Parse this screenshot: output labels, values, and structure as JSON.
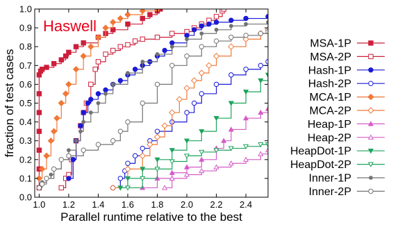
{
  "chart_data": {
    "type": "line",
    "title": "Haswell",
    "xlabel": "Parallel runtime relative to the best",
    "ylabel": "fraction of test cases",
    "xlim": [
      0.97,
      2.55
    ],
    "ylim": [
      0.0,
      1.0
    ],
    "x_ticks": [
      "1.0",
      "1.2",
      "1.4",
      "1.6",
      "1.8",
      "2.0",
      "2.2",
      "2.4"
    ],
    "y_ticks": [
      "0.0",
      "0.1",
      "0.2",
      "0.3",
      "0.4",
      "0.5",
      "0.6",
      "0.7",
      "0.8",
      "0.9",
      "1.0"
    ],
    "title_color": "#e8001a",
    "legend_position": "right, outside plot",
    "series": [
      {
        "name": "MSA-1P",
        "color": "#cc1f3a",
        "marker": "square-filled",
        "x": [
          1.0,
          1.0,
          1.0,
          1.0,
          1.0,
          1.0,
          1.0,
          1.01,
          1.02,
          1.05,
          1.1,
          1.15,
          1.18,
          1.2,
          1.25,
          1.3,
          1.4,
          1.45,
          1.5,
          1.6,
          1.7,
          1.75,
          1.8,
          1.82
        ],
        "y": [
          0.05,
          0.15,
          0.25,
          0.35,
          0.45,
          0.55,
          0.65,
          0.67,
          0.68,
          0.69,
          0.71,
          0.73,
          0.75,
          0.77,
          0.8,
          0.82,
          0.85,
          0.87,
          0.89,
          0.92,
          0.95,
          0.97,
          0.99,
          1.0
        ]
      },
      {
        "name": "MSA-2P",
        "color": "#cc1f3a",
        "marker": "square-open",
        "x": [
          1.15,
          1.18,
          1.2,
          1.22,
          1.25,
          1.28,
          1.3,
          1.32,
          1.35,
          1.38,
          1.4,
          1.45,
          1.5,
          1.55,
          1.6,
          1.65,
          1.7,
          1.8,
          1.9,
          2.0,
          2.05,
          2.1,
          2.15,
          2.2,
          2.24,
          2.25
        ],
        "y": [
          0.05,
          0.1,
          0.12,
          0.2,
          0.3,
          0.38,
          0.45,
          0.5,
          0.6,
          0.68,
          0.72,
          0.76,
          0.78,
          0.8,
          0.81,
          0.83,
          0.84,
          0.85,
          0.87,
          0.88,
          0.9,
          0.92,
          0.94,
          0.96,
          0.99,
          1.0
        ]
      },
      {
        "name": "Hash-1P",
        "color": "#1a1ad6",
        "marker": "circle-filled",
        "x": [
          1.2,
          1.23,
          1.25,
          1.28,
          1.3,
          1.33,
          1.35,
          1.4,
          1.45,
          1.5,
          1.55,
          1.6,
          1.65,
          1.7,
          1.75,
          1.8,
          1.85,
          1.9,
          2.0,
          2.05,
          2.1,
          2.15,
          2.2,
          2.3,
          2.4,
          2.55
        ],
        "y": [
          0.1,
          0.2,
          0.3,
          0.38,
          0.45,
          0.5,
          0.52,
          0.55,
          0.57,
          0.6,
          0.62,
          0.65,
          0.68,
          0.7,
          0.72,
          0.75,
          0.78,
          0.82,
          0.86,
          0.89,
          0.91,
          0.92,
          0.93,
          0.94,
          0.95,
          0.96
        ]
      },
      {
        "name": "Hash-2P",
        "color": "#1a1ad6",
        "marker": "circle-open",
        "x": [
          1.5,
          1.55,
          1.58,
          1.6,
          1.65,
          1.7,
          1.75,
          1.8,
          1.9,
          2.0,
          2.05,
          2.1,
          2.2,
          2.3,
          2.4,
          2.5,
          2.55
        ],
        "y": [
          0.05,
          0.1,
          0.14,
          0.18,
          0.22,
          0.26,
          0.3,
          0.35,
          0.4,
          0.45,
          0.5,
          0.55,
          0.6,
          0.65,
          0.68,
          0.7,
          0.72
        ]
      },
      {
        "name": "MCA-1P",
        "color": "#f07837",
        "marker": "diamond-filled",
        "x": [
          1.0,
          1.02,
          1.05,
          1.08,
          1.1,
          1.12,
          1.15,
          1.18,
          1.2,
          1.25,
          1.3,
          1.35,
          1.4,
          1.45,
          1.5,
          1.55,
          1.6,
          1.7,
          1.8
        ],
        "y": [
          0.1,
          0.15,
          0.22,
          0.3,
          0.35,
          0.42,
          0.5,
          0.55,
          0.6,
          0.68,
          0.75,
          0.8,
          0.85,
          0.9,
          0.93,
          0.95,
          0.97,
          0.99,
          1.0
        ]
      },
      {
        "name": "MCA-2P",
        "color": "#f07837",
        "marker": "diamond-open",
        "x": [
          1.5,
          1.6,
          1.7,
          1.75,
          1.8,
          1.85,
          1.9,
          1.95,
          2.0,
          2.05,
          2.1,
          2.15,
          2.2,
          2.3,
          2.4,
          2.5,
          2.55
        ],
        "y": [
          0.05,
          0.15,
          0.22,
          0.28,
          0.32,
          0.38,
          0.45,
          0.52,
          0.58,
          0.62,
          0.66,
          0.7,
          0.75,
          0.8,
          0.84,
          0.87,
          0.89
        ]
      },
      {
        "name": "Heap-1P",
        "color": "#d45bc6",
        "marker": "triangle-filled",
        "x": [
          1.7,
          1.8,
          1.9,
          2.0,
          2.1,
          2.2,
          2.25,
          2.3,
          2.4,
          2.5,
          2.55
        ],
        "y": [
          0.05,
          0.1,
          0.13,
          0.16,
          0.2,
          0.26,
          0.3,
          0.36,
          0.42,
          0.45,
          0.47
        ]
      },
      {
        "name": "Heap-2P",
        "color": "#d45bc6",
        "marker": "triangle-open",
        "x": [
          1.85,
          1.9,
          2.0,
          2.1,
          2.2,
          2.3,
          2.4,
          2.5,
          2.55
        ],
        "y": [
          0.05,
          0.1,
          0.12,
          0.14,
          0.16,
          0.18,
          0.2,
          0.23,
          0.25
        ]
      },
      {
        "name": "HeapDot-1P",
        "color": "#1ea35c",
        "marker": "triangle-down-filled",
        "x": [
          1.55,
          1.6,
          1.7,
          1.8,
          1.9,
          2.0,
          2.1,
          2.2,
          2.3,
          2.4,
          2.5,
          2.55
        ],
        "y": [
          0.05,
          0.1,
          0.15,
          0.2,
          0.25,
          0.3,
          0.35,
          0.42,
          0.5,
          0.56,
          0.62,
          0.65
        ]
      },
      {
        "name": "HeapDot-2P",
        "color": "#1ea35c",
        "marker": "triangle-down-open",
        "x": [
          1.6,
          1.7,
          1.8,
          1.9,
          2.0,
          2.1,
          2.2,
          2.3,
          2.4,
          2.5,
          2.55
        ],
        "y": [
          0.05,
          0.1,
          0.15,
          0.19,
          0.22,
          0.24,
          0.25,
          0.26,
          0.27,
          0.28,
          0.28
        ]
      },
      {
        "name": "Inner-1P",
        "color": "#737373",
        "marker": "circle-filled-small",
        "x": [
          1.02,
          1.05,
          1.08,
          1.1,
          1.15,
          1.2,
          1.25,
          1.28,
          1.3,
          1.35,
          1.4,
          1.45,
          1.5,
          1.6,
          1.7,
          1.8,
          1.9,
          2.0,
          2.1,
          2.2,
          2.3,
          2.4,
          2.55
        ],
        "y": [
          0.08,
          0.1,
          0.12,
          0.15,
          0.2,
          0.25,
          0.3,
          0.35,
          0.4,
          0.45,
          0.5,
          0.55,
          0.6,
          0.66,
          0.72,
          0.76,
          0.8,
          0.84,
          0.87,
          0.89,
          0.91,
          0.92,
          0.93
        ]
      },
      {
        "name": "Inner-2P",
        "color": "#737373",
        "marker": "circle-open",
        "x": [
          1.0,
          1.02,
          1.05,
          1.1,
          1.15,
          1.2,
          1.3,
          1.4,
          1.5,
          1.55,
          1.6,
          1.7,
          1.8,
          1.9,
          2.0,
          2.1,
          2.2,
          2.3,
          2.4,
          2.5,
          2.55
        ],
        "y": [
          0.05,
          0.07,
          0.1,
          0.15,
          0.2,
          0.22,
          0.25,
          0.28,
          0.3,
          0.35,
          0.4,
          0.5,
          0.6,
          0.7,
          0.75,
          0.8,
          0.83,
          0.85,
          0.86,
          0.87,
          0.88
        ]
      }
    ]
  }
}
